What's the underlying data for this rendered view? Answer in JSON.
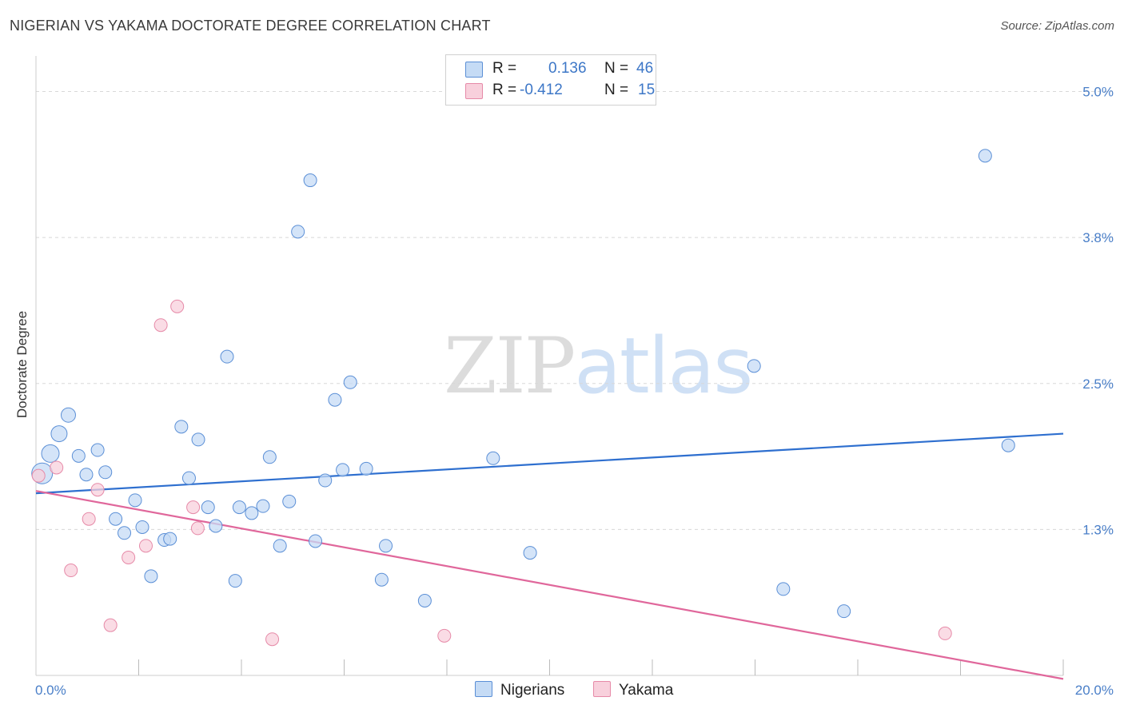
{
  "title": "NIGERIAN VS YAKAMA DOCTORATE DEGREE CORRELATION CHART",
  "source": "Source: ZipAtlas.com",
  "watermark": {
    "part1": "ZIP",
    "part2": "atlas"
  },
  "legend": {
    "rows": [
      {
        "r_label": "R =",
        "r_value": "0.136",
        "n_label": "N =",
        "n_value": "46"
      },
      {
        "r_label": "R =",
        "r_value": "-0.412",
        "n_label": "N =",
        "n_value": "15"
      }
    ]
  },
  "chart_data": {
    "type": "scatter",
    "title": "NIGERIAN VS YAKAMA DOCTORATE DEGREE CORRELATION CHART",
    "xlabel": "",
    "ylabel": "Doctorate Degree",
    "xlim": [
      0,
      20
    ],
    "ylim": [
      0,
      5.25
    ],
    "x_tick_labels": [
      {
        "value": 0,
        "label": "0.0%"
      },
      {
        "value": 20,
        "label": "20.0%"
      }
    ],
    "y_tick_labels": [
      {
        "value": 1.25,
        "label": "1.3%"
      },
      {
        "value": 2.5,
        "label": "2.5%"
      },
      {
        "value": 3.75,
        "label": "3.8%"
      },
      {
        "value": 5.0,
        "label": "5.0%"
      }
    ],
    "x_minor_ticks": [
      2,
      4,
      6,
      8,
      10,
      12,
      14,
      16,
      18,
      20
    ],
    "grid": "dashed horizontal",
    "series": [
      {
        "name": "Nigerians",
        "color": "#5b8fd6",
        "fill": "#c5dbf5",
        "trend": {
          "x": [
            0,
            20
          ],
          "y": [
            1.56,
            2.07
          ],
          "color": "#2e6fcf"
        },
        "points": [
          [
            0.12,
            1.73,
            26
          ],
          [
            0.28,
            1.9,
            22
          ],
          [
            0.45,
            2.07,
            20
          ],
          [
            0.63,
            2.23,
            18
          ],
          [
            0.83,
            1.88,
            16
          ],
          [
            0.98,
            1.72,
            16
          ],
          [
            1.2,
            1.93,
            16
          ],
          [
            1.35,
            1.74,
            16
          ],
          [
            1.55,
            1.34,
            16
          ],
          [
            1.72,
            1.22,
            16
          ],
          [
            1.93,
            1.5,
            16
          ],
          [
            2.07,
            1.27,
            16
          ],
          [
            2.24,
            0.85,
            16
          ],
          [
            2.5,
            1.16,
            16
          ],
          [
            2.61,
            1.17,
            16
          ],
          [
            2.83,
            2.13,
            16
          ],
          [
            2.98,
            1.69,
            16
          ],
          [
            3.16,
            2.02,
            16
          ],
          [
            3.35,
            1.44,
            16
          ],
          [
            3.5,
            1.28,
            16
          ],
          [
            3.72,
            2.73,
            16
          ],
          [
            3.88,
            0.81,
            16
          ],
          [
            3.96,
            1.44,
            16
          ],
          [
            4.2,
            1.39,
            16
          ],
          [
            4.42,
            1.45,
            16
          ],
          [
            4.55,
            1.87,
            16
          ],
          [
            4.75,
            1.11,
            16
          ],
          [
            4.93,
            1.49,
            16
          ],
          [
            5.1,
            3.8,
            16
          ],
          [
            5.34,
            4.24,
            16
          ],
          [
            5.44,
            1.15,
            16
          ],
          [
            5.63,
            1.67,
            16
          ],
          [
            5.82,
            2.36,
            16
          ],
          [
            5.97,
            1.76,
            16
          ],
          [
            6.12,
            2.51,
            16
          ],
          [
            6.43,
            1.77,
            16
          ],
          [
            6.81,
            1.11,
            16
          ],
          [
            6.73,
            0.82,
            16
          ],
          [
            7.57,
            0.64,
            16
          ],
          [
            8.9,
            1.86,
            16
          ],
          [
            9.62,
            1.05,
            16
          ],
          [
            13.98,
            2.65,
            16
          ],
          [
            14.55,
            0.74,
            16
          ],
          [
            15.73,
            0.55,
            16
          ],
          [
            18.48,
            4.45,
            16
          ],
          [
            18.93,
            1.97,
            16
          ]
        ]
      },
      {
        "name": "Yakama",
        "color": "#e68aa8",
        "fill": "#f8d0dc",
        "trend": {
          "x": [
            0,
            20
          ],
          "y": [
            1.58,
            -0.03
          ],
          "color": "#e0679b"
        },
        "points": [
          [
            0.05,
            1.71,
            16
          ],
          [
            0.4,
            1.78,
            16
          ],
          [
            0.68,
            0.9,
            16
          ],
          [
            1.03,
            1.34,
            16
          ],
          [
            1.2,
            1.59,
            16
          ],
          [
            1.45,
            0.43,
            16
          ],
          [
            1.8,
            1.01,
            16
          ],
          [
            2.14,
            1.11,
            16
          ],
          [
            2.43,
            3.0,
            16
          ],
          [
            2.75,
            3.16,
            16
          ],
          [
            3.06,
            1.44,
            16
          ],
          [
            3.15,
            1.26,
            16
          ],
          [
            4.6,
            0.31,
            16
          ],
          [
            7.95,
            0.34,
            16
          ],
          [
            17.7,
            0.36,
            16
          ]
        ]
      }
    ]
  },
  "bottom_legend": [
    {
      "label": "Nigerians"
    },
    {
      "label": "Yakama"
    }
  ],
  "colors": {
    "blue_fill": "#c5dbf5",
    "blue_stroke": "#5b8fd6",
    "pink_fill": "#f8d0dc",
    "pink_stroke": "#e68aa8",
    "axis_label": "#4a7fc8",
    "value_text": "#3d77c7"
  }
}
